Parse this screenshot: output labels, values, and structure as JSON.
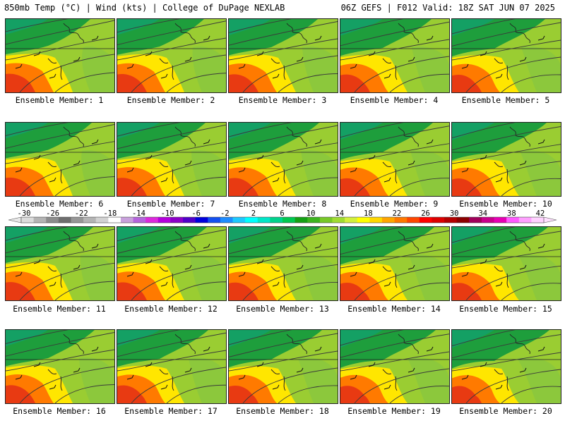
{
  "header": {
    "left_title": "850mb Temp (°C) | Wind (kts) | College of DuPage NEXLAB",
    "right_title": "06Z GEFS | F012 Valid: 18Z SAT JUN 07 2025"
  },
  "panels": [
    {
      "label": "Ensemble Member: 1"
    },
    {
      "label": "Ensemble Member: 2"
    },
    {
      "label": "Ensemble Member: 3"
    },
    {
      "label": "Ensemble Member: 4"
    },
    {
      "label": "Ensemble Member: 5"
    },
    {
      "label": "Ensemble Member: 6"
    },
    {
      "label": "Ensemble Member: 7"
    },
    {
      "label": "Ensemble Member: 8"
    },
    {
      "label": "Ensemble Member: 9"
    },
    {
      "label": "Ensemble Member: 10"
    },
    {
      "label": "Ensemble Member: 11"
    },
    {
      "label": "Ensemble Member: 12"
    },
    {
      "label": "Ensemble Member: 13"
    },
    {
      "label": "Ensemble Member: 14"
    },
    {
      "label": "Ensemble Member: 15"
    },
    {
      "label": "Ensemble Member: 16"
    },
    {
      "label": "Ensemble Member: 17"
    },
    {
      "label": "Ensemble Member: 18"
    },
    {
      "label": "Ensemble Member: 19"
    },
    {
      "label": "Ensemble Member: 20"
    }
  ],
  "colorbar": {
    "tick_labels": [
      "-30",
      "-26",
      "-22",
      "-18",
      "-14",
      "-10",
      "-6",
      "-2",
      "2",
      "6",
      "10",
      "14",
      "18",
      "22",
      "26",
      "30",
      "34",
      "38",
      "42"
    ],
    "colors": [
      "#dcdcdc",
      "#b4b4b4",
      "#8c8c8c",
      "#6e6e6e",
      "#969696",
      "#b4b4b4",
      "#d2d2d2",
      "#ffffff",
      "#c8a0dc",
      "#b464dc",
      "#dc28dc",
      "#b400dc",
      "#8c00c8",
      "#5000c8",
      "#0000dc",
      "#1450f0",
      "#1e8cff",
      "#1ec8ff",
      "#00ffff",
      "#00e6c8",
      "#00d28c",
      "#00c850",
      "#14a014",
      "#3cb41e",
      "#78c828",
      "#a0dc32",
      "#d2f03c",
      "#ffff00",
      "#ffd700",
      "#ffa500",
      "#ff7800",
      "#ff4600",
      "#ff0000",
      "#dc0000",
      "#b40000",
      "#8c0000",
      "#a0005a",
      "#c8008c",
      "#e600b4",
      "#ff5aff",
      "#ffa0ff",
      "#ffd2ff"
    ]
  },
  "legend_colors": {
    "cool": "#1e9e3c",
    "mild": "#9acd32",
    "warm": "#ffe600",
    "hot": "#ff7a00",
    "very_hot": "#e83a12",
    "contour": "#3a3a3a"
  }
}
